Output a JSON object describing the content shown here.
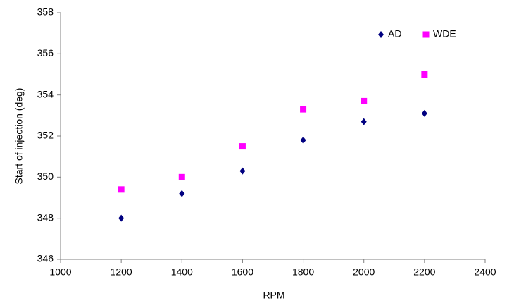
{
  "chart_data": {
    "type": "scatter",
    "x_label": "RPM",
    "y_label": "Start of injection (deg)",
    "x": [
      1200,
      1400,
      1600,
      1800,
      2000,
      2200
    ],
    "series": [
      {
        "name": "AD",
        "color": "#000080",
        "marker": "diamond",
        "values": [
          348.0,
          349.2,
          350.3,
          351.8,
          352.7,
          353.1
        ]
      },
      {
        "name": "WDE",
        "color": "#ff00ff",
        "marker": "square",
        "values": [
          349.4,
          350.0,
          351.5,
          353.3,
          353.7,
          355.0
        ]
      }
    ],
    "xlim": [
      1000,
      2400
    ],
    "xticks": [
      1000,
      1200,
      1400,
      1600,
      1800,
      2000,
      2200,
      2400
    ],
    "ylim": [
      346,
      358
    ],
    "yticks": [
      346,
      348,
      350,
      352,
      354,
      356,
      358
    ],
    "grid": false,
    "legend": "top-right"
  }
}
